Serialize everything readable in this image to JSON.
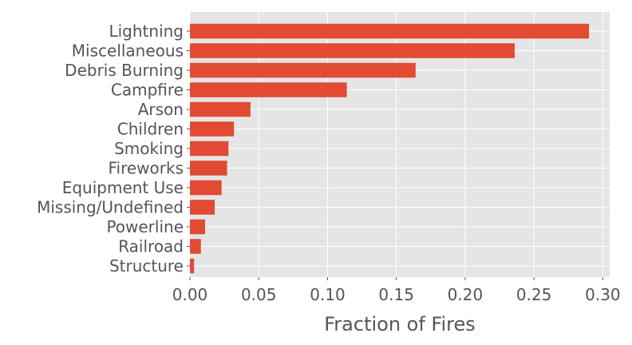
{
  "chart_data": {
    "type": "bar",
    "orientation": "horizontal",
    "categories": [
      "Lightning",
      "Miscellaneous",
      "Debris Burning",
      "Campfire",
      "Arson",
      "Children",
      "Smoking",
      "Fireworks",
      "Equipment Use",
      "Missing/Undefined",
      "Powerline",
      "Railroad",
      "Structure"
    ],
    "values": [
      0.29,
      0.236,
      0.164,
      0.114,
      0.044,
      0.032,
      0.028,
      0.027,
      0.023,
      0.018,
      0.011,
      0.008,
      0.003
    ],
    "xlabel": "Fraction of Fires",
    "ylabel": "",
    "title": "",
    "xlim": [
      0.0,
      0.305
    ],
    "xticks": [
      0.0,
      0.05,
      0.1,
      0.15,
      0.2,
      0.25,
      0.3
    ],
    "xtick_labels": [
      "0.00",
      "0.05",
      "0.10",
      "0.15",
      "0.20",
      "0.25",
      "0.30"
    ],
    "grid": true,
    "colors": {
      "bar": "#E24A33",
      "background": "#E5E5E5",
      "grid": "#FFFFFF",
      "text": "#555555"
    }
  }
}
